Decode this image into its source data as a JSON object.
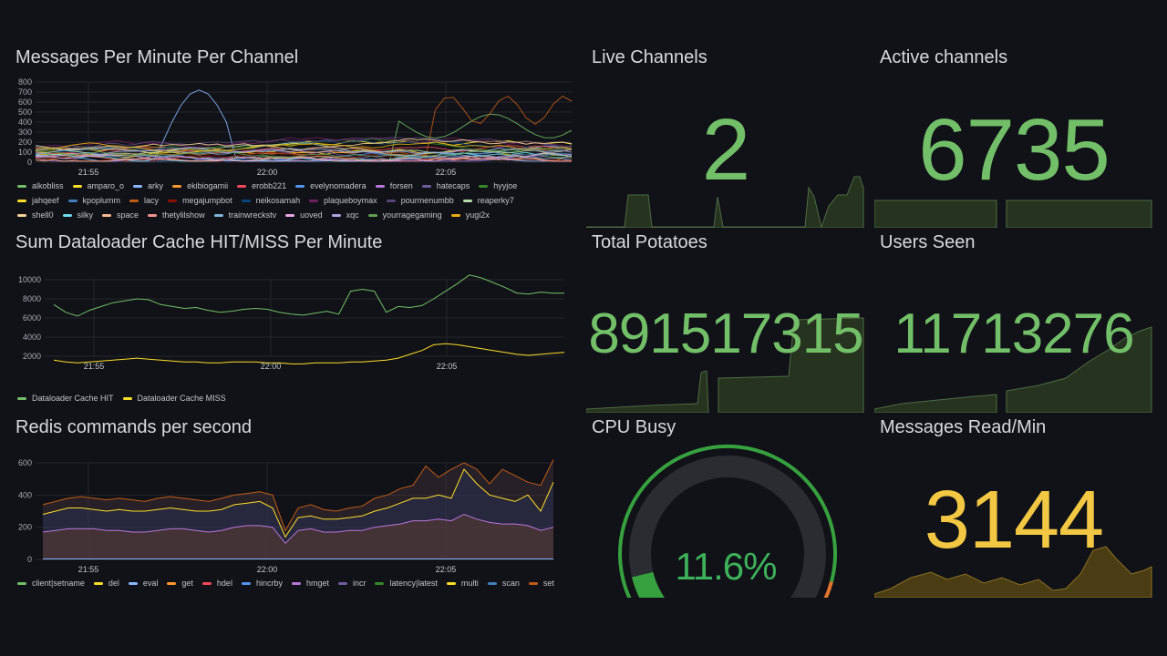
{
  "colors": {
    "green": "#73bf69",
    "yellow": "#fade2a",
    "gold": "#f2c744",
    "bg": "#111217",
    "grid": "#24262c"
  },
  "panels": {
    "messages_per_channel": {
      "title": "Messages Per Minute Per Channel",
      "yticks": [
        "800",
        "700",
        "600",
        "500",
        "400",
        "300",
        "200",
        "100",
        "0"
      ],
      "xticks": [
        "21:55",
        "22:00",
        "22:05"
      ],
      "legend": [
        {
          "name": "alkobliss",
          "color": "#73bf69"
        },
        {
          "name": "amparo_o",
          "color": "#fade2a"
        },
        {
          "name": "arky",
          "color": "#8ab8ff"
        },
        {
          "name": "ekibiogamii",
          "color": "#ff9830"
        },
        {
          "name": "erobb221",
          "color": "#f2495c"
        },
        {
          "name": "evelynomadera",
          "color": "#5794f2"
        },
        {
          "name": "forsen",
          "color": "#b877d9"
        },
        {
          "name": "hatecaps",
          "color": "#705da0"
        },
        {
          "name": "hyyjoe",
          "color": "#37872d"
        },
        {
          "name": "jahqeef",
          "color": "#fade2a"
        },
        {
          "name": "kpoplumm",
          "color": "#447ebc"
        },
        {
          "name": "lacy",
          "color": "#c15c17"
        },
        {
          "name": "megajumpbot",
          "color": "#890f02"
        },
        {
          "name": "neikosamah",
          "color": "#0a437c"
        },
        {
          "name": "plaqueboymax",
          "color": "#6d1f62"
        },
        {
          "name": "pourmenumbb",
          "color": "#584477"
        },
        {
          "name": "reaperky7",
          "color": "#b7dbab"
        },
        {
          "name": "shell0",
          "color": "#f4d598"
        },
        {
          "name": "silky",
          "color": "#70dbed"
        },
        {
          "name": "space",
          "color": "#f9ba8f"
        },
        {
          "name": "thetylilshow",
          "color": "#f29191"
        },
        {
          "name": "trainwreckstv",
          "color": "#82b5d8"
        },
        {
          "name": "uoved",
          "color": "#e5a8e2"
        },
        {
          "name": "xqc",
          "color": "#aea2e0"
        },
        {
          "name": "yourragegaming",
          "color": "#629e51"
        },
        {
          "name": "yugi2x",
          "color": "#e5ac0e"
        }
      ]
    },
    "dataloader": {
      "title": "Sum Dataloader Cache HIT/MISS Per Minute",
      "yticks": [
        "10000",
        "8000",
        "6000",
        "4000",
        "2000"
      ],
      "xticks": [
        "21:55",
        "22:00",
        "22:05"
      ],
      "legend": [
        {
          "name": "Dataloader Cache HIT",
          "color": "#73bf69"
        },
        {
          "name": "Dataloader Cache MISS",
          "color": "#fade2a"
        }
      ]
    },
    "redis": {
      "title": "Redis commands per second",
      "yticks": [
        "600",
        "400",
        "200",
        "0"
      ],
      "xticks": [
        "21:55",
        "22:00",
        "22:05"
      ],
      "legend": [
        {
          "name": "client|setname",
          "color": "#73bf69"
        },
        {
          "name": "del",
          "color": "#fade2a"
        },
        {
          "name": "eval",
          "color": "#8ab8ff"
        },
        {
          "name": "get",
          "color": "#ff9830"
        },
        {
          "name": "hdel",
          "color": "#f2495c"
        },
        {
          "name": "hincrby",
          "color": "#5794f2"
        },
        {
          "name": "hmget",
          "color": "#b877d9"
        },
        {
          "name": "incr",
          "color": "#705da0"
        },
        {
          "name": "latency|latest",
          "color": "#37872d"
        },
        {
          "name": "multi",
          "color": "#fade2a"
        },
        {
          "name": "scan",
          "color": "#447ebc"
        },
        {
          "name": "set",
          "color": "#c15c17"
        }
      ]
    },
    "live_channels": {
      "title": "Live Channels",
      "value": "2"
    },
    "active_channels": {
      "title": "Active channels",
      "value": "6735"
    },
    "total_potatoes": {
      "title": "Total Potatoes",
      "value": "891517315"
    },
    "users_seen": {
      "title": "Users Seen",
      "value": "11713276"
    },
    "cpu_busy": {
      "title": "CPU Busy",
      "value": "11.6%",
      "percent": 11.6
    },
    "messages_read": {
      "title": "Messages Read/Min",
      "value": "3144"
    }
  }
}
